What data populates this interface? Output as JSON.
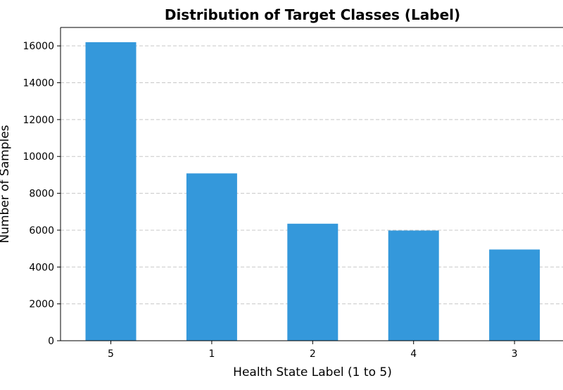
{
  "chart_data": {
    "type": "bar",
    "title": "Distribution of Target Classes (Label)",
    "xlabel": "Health State Label (1 to 5)",
    "ylabel": "Number of Samples",
    "categories": [
      "5",
      "1",
      "2",
      "4",
      "3"
    ],
    "values": [
      16200,
      9080,
      6350,
      5980,
      4950
    ],
    "ylim": [
      0,
      17000
    ],
    "yticks": [
      0,
      2000,
      4000,
      6000,
      8000,
      10000,
      12000,
      14000,
      16000
    ],
    "grid": "y-axis dashed",
    "bar_color": "#3498db"
  }
}
